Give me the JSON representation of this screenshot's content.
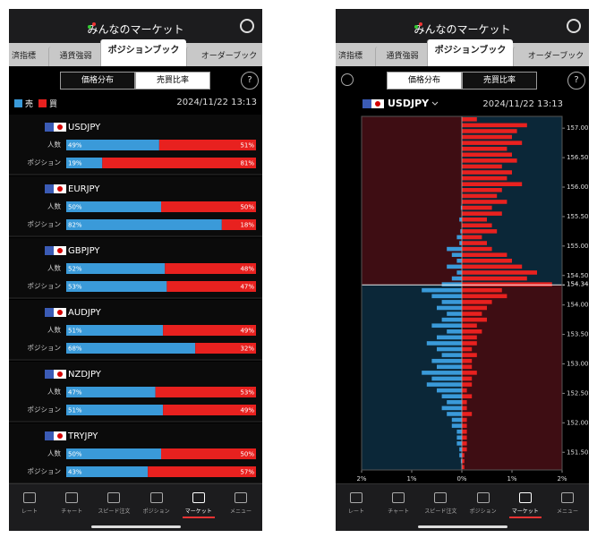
{
  "left": {
    "header": "みんなのマーケット",
    "tabs": [
      "済指標",
      "通貨強弱",
      "ポジションブック",
      "オーダーブック"
    ],
    "active_tab": 2,
    "segments": [
      "価格分布",
      "売買比率"
    ],
    "active_segment": 1,
    "help": "?",
    "legend": {
      "sell": "売",
      "buy": "買",
      "sell_color": "#3a9ad9",
      "buy_color": "#e8211f"
    },
    "timestamp": "2024/11/22 13:13",
    "row_labels": {
      "people": "人数",
      "position": "ポジション"
    },
    "pairs": [
      {
        "name": "USDJPY",
        "people": {
          "sell": 49,
          "buy": 51,
          "sell_label": "49%",
          "buy_label": "51%"
        },
        "position": {
          "sell": 19,
          "buy": 81,
          "sell_label": "19%",
          "buy_label": "81%"
        }
      },
      {
        "name": "EURJPY",
        "people": {
          "sell": 50,
          "buy": 50,
          "sell_label": "50%",
          "buy_label": "50%"
        },
        "position": {
          "sell": 82,
          "buy": 18,
          "sell_label": "82%",
          "buy_label": "18%"
        }
      },
      {
        "name": "GBPJPY",
        "people": {
          "sell": 52,
          "buy": 48,
          "sell_label": "52%",
          "buy_label": "48%"
        },
        "position": {
          "sell": 53,
          "buy": 47,
          "sell_label": "53%",
          "buy_label": "47%"
        }
      },
      {
        "name": "AUDJPY",
        "people": {
          "sell": 51,
          "buy": 49,
          "sell_label": "51%",
          "buy_label": "49%"
        },
        "position": {
          "sell": 68,
          "buy": 32,
          "sell_label": "68%",
          "buy_label": "32%"
        }
      },
      {
        "name": "NZDJPY",
        "people": {
          "sell": 47,
          "buy": 53,
          "sell_label": "47%",
          "buy_label": "53%"
        },
        "position": {
          "sell": 51,
          "buy": 49,
          "sell_label": "51%",
          "buy_label": "49%"
        }
      },
      {
        "name": "TRYJPY",
        "people": {
          "sell": 50,
          "buy": 50,
          "sell_label": "50%",
          "buy_label": "50%"
        },
        "position": {
          "sell": 43,
          "buy": 57,
          "sell_label": "43%",
          "buy_label": "57%"
        }
      }
    ],
    "nav": [
      "レート",
      "チャート",
      "スピード注文",
      "ポジション",
      "マーケット",
      "メニュー"
    ],
    "active_nav": 4
  },
  "right": {
    "header": "みんなのマーケット",
    "tabs": [
      "済指標",
      "通貨強弱",
      "ポジションブック",
      "オーダーブック"
    ],
    "active_tab": 2,
    "segments": [
      "価格分布",
      "売買比率"
    ],
    "active_segment": 0,
    "help": "?",
    "symbol": "USDJPY",
    "timestamp": "2024/11/22 13:13",
    "chart_data": {
      "type": "bar",
      "orientation": "horizontal",
      "ylim": [
        151.2,
        157.2
      ],
      "yticks": [
        {
          "value": 157,
          "label": "157.00"
        },
        {
          "value": 156.5,
          "label": "156.50"
        },
        {
          "value": 156,
          "label": "156.00"
        },
        {
          "value": 155.5,
          "label": "155.50"
        },
        {
          "value": 155,
          "label": "155.00"
        },
        {
          "value": 154.5,
          "label": "154.50"
        },
        {
          "value": 154,
          "label": "154.00"
        },
        {
          "value": 153.5,
          "label": "153.50"
        },
        {
          "value": 153,
          "label": "153.00"
        },
        {
          "value": 152.5,
          "label": "152.50"
        },
        {
          "value": 152,
          "label": "152.00"
        },
        {
          "value": 151.5,
          "label": "151.50"
        }
      ],
      "current_price": 154.34,
      "xlim": [
        -2,
        2
      ],
      "xticks": [
        {
          "value": -2,
          "label": "2%"
        },
        {
          "value": -1,
          "label": "1%"
        },
        {
          "value": 0,
          "label": "0%"
        },
        {
          "value": 1,
          "label": "1%"
        },
        {
          "value": 2,
          "label": "2%"
        }
      ],
      "series": [
        {
          "name": "売",
          "color": "#3a9ad9",
          "values": [
            0,
            0,
            0,
            0,
            0,
            0,
            0,
            0,
            0,
            0,
            0,
            0,
            0,
            0,
            0,
            0.02,
            0,
            0.05,
            0,
            0.03,
            0.1,
            0.05,
            0.3,
            0.2,
            0.1,
            0.3,
            0.1,
            0.2,
            0.4,
            0.8,
            0.6,
            0.4,
            0.5,
            0.3,
            0.4,
            0.6,
            0.3,
            0.5,
            0.7,
            0.5,
            0.4,
            0.6,
            0.5,
            0.8,
            0.6,
            0.7,
            0.5,
            0.4,
            0.3,
            0.4,
            0.3,
            0.2,
            0.2,
            0.1,
            0.1,
            0.1,
            0.05,
            0.05,
            0.02,
            0
          ]
        },
        {
          "name": "買",
          "color": "#e8211f",
          "values": [
            0.3,
            1.3,
            1.1,
            1.0,
            1.2,
            0.9,
            1.0,
            1.1,
            0.8,
            1.0,
            0.9,
            1.2,
            0.8,
            0.7,
            0.9,
            0.6,
            0.8,
            0.5,
            0.6,
            0.7,
            0.4,
            0.5,
            0.6,
            0.9,
            1.0,
            1.2,
            1.5,
            1.3,
            1.8,
            0.8,
            0.9,
            0.6,
            0.5,
            0.4,
            0.5,
            0.3,
            0.4,
            0.3,
            0.3,
            0.2,
            0.3,
            0.2,
            0.2,
            0.3,
            0.2,
            0.2,
            0.1,
            0.2,
            0.1,
            0.1,
            0.2,
            0.1,
            0.1,
            0.1,
            0.1,
            0.1,
            0.1,
            0.05,
            0.05,
            0.05
          ]
        }
      ]
    },
    "nav": [
      "レート",
      "チャート",
      "スピード注文",
      "ポジション",
      "マーケット",
      "メニュー"
    ],
    "active_nav": 4
  }
}
